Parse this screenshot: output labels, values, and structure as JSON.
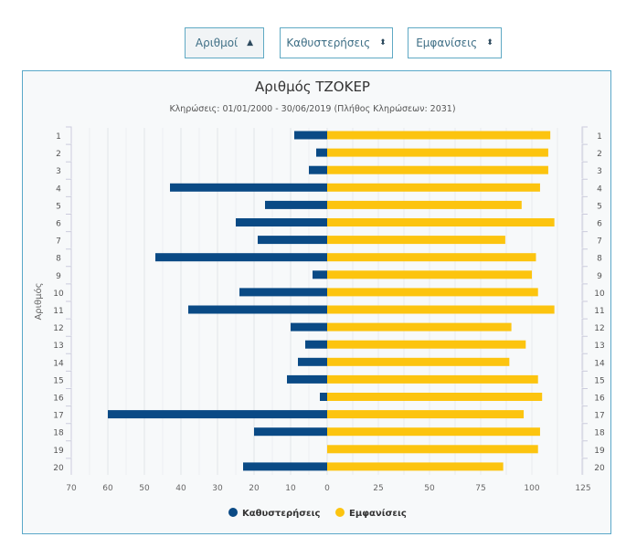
{
  "sort_buttons": [
    {
      "label": "Αριθμοί",
      "icon": "caret-up-icon",
      "glyph": "▲"
    },
    {
      "label": "Καθυστερήσεις",
      "icon": "sort-icon",
      "glyph": "⬍"
    },
    {
      "label": "Εμφανίσεις",
      "icon": "sort-icon",
      "glyph": "⬍"
    }
  ],
  "chart_data": {
    "type": "bar",
    "orientation": "horizontal-diverging",
    "title": "Αριθμός ΤΖΟΚΕΡ",
    "subtitle": "Κληρώσεις: 01/01/2000 - 30/06/2019 (Πλήθος Κληρώσεων: 2031)",
    "ylabel": "Αριθμός",
    "categories": [
      "1",
      "2",
      "3",
      "4",
      "5",
      "6",
      "7",
      "8",
      "9",
      "10",
      "11",
      "12",
      "13",
      "14",
      "15",
      "16",
      "17",
      "18",
      "19",
      "20"
    ],
    "series": [
      {
        "name": "Καθυστερήσεις",
        "color": "#0a4a85",
        "values": [
          9,
          3,
          5,
          43,
          17,
          25,
          19,
          47,
          4,
          24,
          38,
          10,
          6,
          8,
          11,
          2,
          60,
          20,
          0,
          23
        ],
        "xlim": [
          70,
          0
        ],
        "ticks": [
          "70",
          "60",
          "50",
          "40",
          "30",
          "20",
          "10",
          "0"
        ]
      },
      {
        "name": "Εμφανίσεις",
        "color": "#fcc40f",
        "values": [
          109,
          108,
          108,
          104,
          95,
          111,
          87,
          102,
          100,
          103,
          111,
          90,
          97,
          89,
          103,
          105,
          96,
          104,
          103,
          86
        ],
        "xlim": [
          0,
          125
        ],
        "ticks": [
          "25",
          "50",
          "75",
          "100",
          "125"
        ]
      }
    ],
    "legend": "bottom-center"
  }
}
